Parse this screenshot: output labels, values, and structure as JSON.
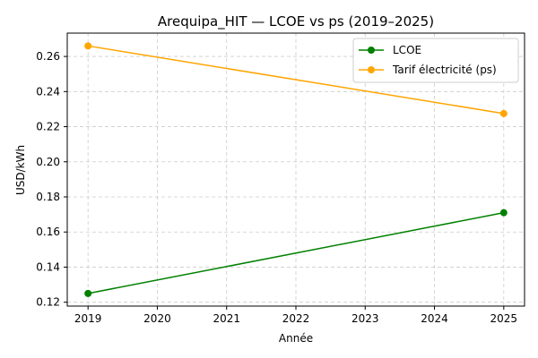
{
  "chart_data": {
    "type": "line",
    "title": "Arequipa_HIT — LCOE vs ps (2019–2025)",
    "xlabel": "Année",
    "ylabel": "USD/kWh",
    "x_ticks": [
      2019,
      2020,
      2021,
      2022,
      2023,
      2024,
      2025
    ],
    "y_ticks": [
      0.12,
      0.14,
      0.16,
      0.18,
      0.2,
      0.22,
      0.24,
      0.26
    ],
    "xlim": [
      2018.7,
      2025.3
    ],
    "ylim": [
      0.1178,
      0.2733
    ],
    "grid": true,
    "legend_position": "top-right",
    "series": [
      {
        "name": "LCOE",
        "color": "#008000",
        "x": [
          2019,
          2025
        ],
        "y": [
          0.125,
          0.171
        ]
      },
      {
        "name": "Tarif électricité (ps)",
        "color": "#FFA500",
        "x": [
          2019,
          2025
        ],
        "y": [
          0.266,
          0.2275
        ]
      }
    ]
  }
}
